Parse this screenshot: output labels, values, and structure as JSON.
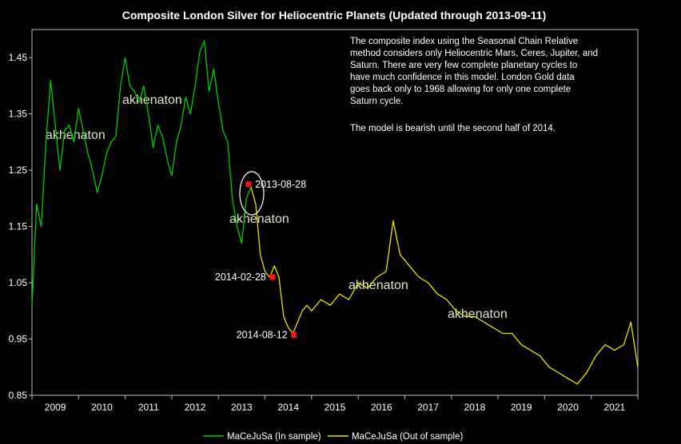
{
  "chart_data": {
    "type": "line",
    "title": "Composite London Silver for Heliocentric Planets (Updated through 2013-09-11)",
    "xlabel": "",
    "ylabel": "",
    "xlim": [
      2009,
      2022
    ],
    "ylim": [
      0.85,
      1.5
    ],
    "x_ticks": [
      "2009",
      "2010",
      "2011",
      "2012",
      "2013",
      "2014",
      "2015",
      "2016",
      "2017",
      "2018",
      "2019",
      "2020",
      "2021"
    ],
    "y_ticks": [
      "0.85",
      "0.95",
      "1.05",
      "1.15",
      "1.25",
      "1.35",
      "1.45"
    ],
    "grid": false,
    "legend_position": "bottom",
    "note_lines": [
      "The composite index using the Seasonal Chain Relative",
      "method considers only Heliocentric Mars, Ceres, Jupiter, and",
      "Saturn.  There are very few complete planetary cycles to",
      "have much confidence in this model.  London Gold data",
      "goes back only to 1968 allowing for only one complete",
      "Saturn cycle.",
      "",
      "The model is bearish until the second half of 2014."
    ],
    "watermark": "akhenaton",
    "series": [
      {
        "name": "MaCeJuSa (In sample)",
        "color": "#00cc00",
        "x": [
          2009.0,
          2009.1,
          2009.2,
          2009.3,
          2009.4,
          2009.5,
          2009.6,
          2009.7,
          2009.8,
          2009.9,
          2010.0,
          2010.1,
          2010.2,
          2010.3,
          2010.4,
          2010.5,
          2010.6,
          2010.7,
          2010.8,
          2010.9,
          2011.0,
          2011.1,
          2011.2,
          2011.3,
          2011.4,
          2011.5,
          2011.6,
          2011.7,
          2011.8,
          2011.9,
          2012.0,
          2012.1,
          2012.2,
          2012.3,
          2012.4,
          2012.5,
          2012.6,
          2012.7,
          2012.8,
          2012.9,
          2013.0,
          2013.1,
          2013.2,
          2013.3,
          2013.4,
          2013.5,
          2013.6,
          2013.7
        ],
        "y": [
          1.01,
          1.19,
          1.15,
          1.3,
          1.41,
          1.33,
          1.25,
          1.32,
          1.33,
          1.3,
          1.36,
          1.32,
          1.28,
          1.25,
          1.21,
          1.24,
          1.28,
          1.3,
          1.31,
          1.4,
          1.45,
          1.4,
          1.39,
          1.37,
          1.4,
          1.35,
          1.29,
          1.33,
          1.31,
          1.27,
          1.24,
          1.3,
          1.33,
          1.38,
          1.35,
          1.4,
          1.46,
          1.48,
          1.39,
          1.43,
          1.37,
          1.32,
          1.3,
          1.2,
          1.15,
          1.12,
          1.2,
          1.22
        ]
      },
      {
        "name": "MaCeJuSa (Out of sample)",
        "color": "#e6e600",
        "x": [
          2013.7,
          2013.8,
          2013.9,
          2014.0,
          2014.1,
          2014.2,
          2014.3,
          2014.4,
          2014.5,
          2014.6,
          2014.7,
          2014.8,
          2014.9,
          2015.0,
          2015.2,
          2015.4,
          2015.6,
          2015.8,
          2016.0,
          2016.2,
          2016.4,
          2016.6,
          2016.75,
          2016.9,
          2017.1,
          2017.3,
          2017.5,
          2017.7,
          2017.9,
          2018.1,
          2018.3,
          2018.5,
          2018.7,
          2018.9,
          2019.1,
          2019.3,
          2019.5,
          2019.7,
          2019.9,
          2020.1,
          2020.3,
          2020.5,
          2020.7,
          2020.9,
          2021.1,
          2021.3,
          2021.5,
          2021.7,
          2021.85,
          2022.0
        ],
        "y": [
          1.22,
          1.19,
          1.1,
          1.07,
          1.06,
          1.08,
          1.06,
          0.99,
          0.97,
          0.96,
          0.98,
          1.0,
          1.01,
          1.0,
          1.02,
          1.01,
          1.03,
          1.02,
          1.05,
          1.04,
          1.06,
          1.07,
          1.16,
          1.1,
          1.08,
          1.06,
          1.05,
          1.03,
          1.02,
          1.0,
          0.99,
          0.99,
          0.98,
          0.97,
          0.96,
          0.96,
          0.94,
          0.93,
          0.92,
          0.9,
          0.89,
          0.88,
          0.87,
          0.89,
          0.92,
          0.94,
          0.93,
          0.94,
          0.98,
          0.9
        ]
      }
    ],
    "annotations": [
      {
        "label": "2013-08-28",
        "x": 2013.65,
        "y": 1.225
      },
      {
        "label": "2014-02-28",
        "x": 2014.16,
        "y": 1.06
      },
      {
        "label": "2014-08-12",
        "x": 2014.62,
        "y": 0.957
      }
    ]
  }
}
